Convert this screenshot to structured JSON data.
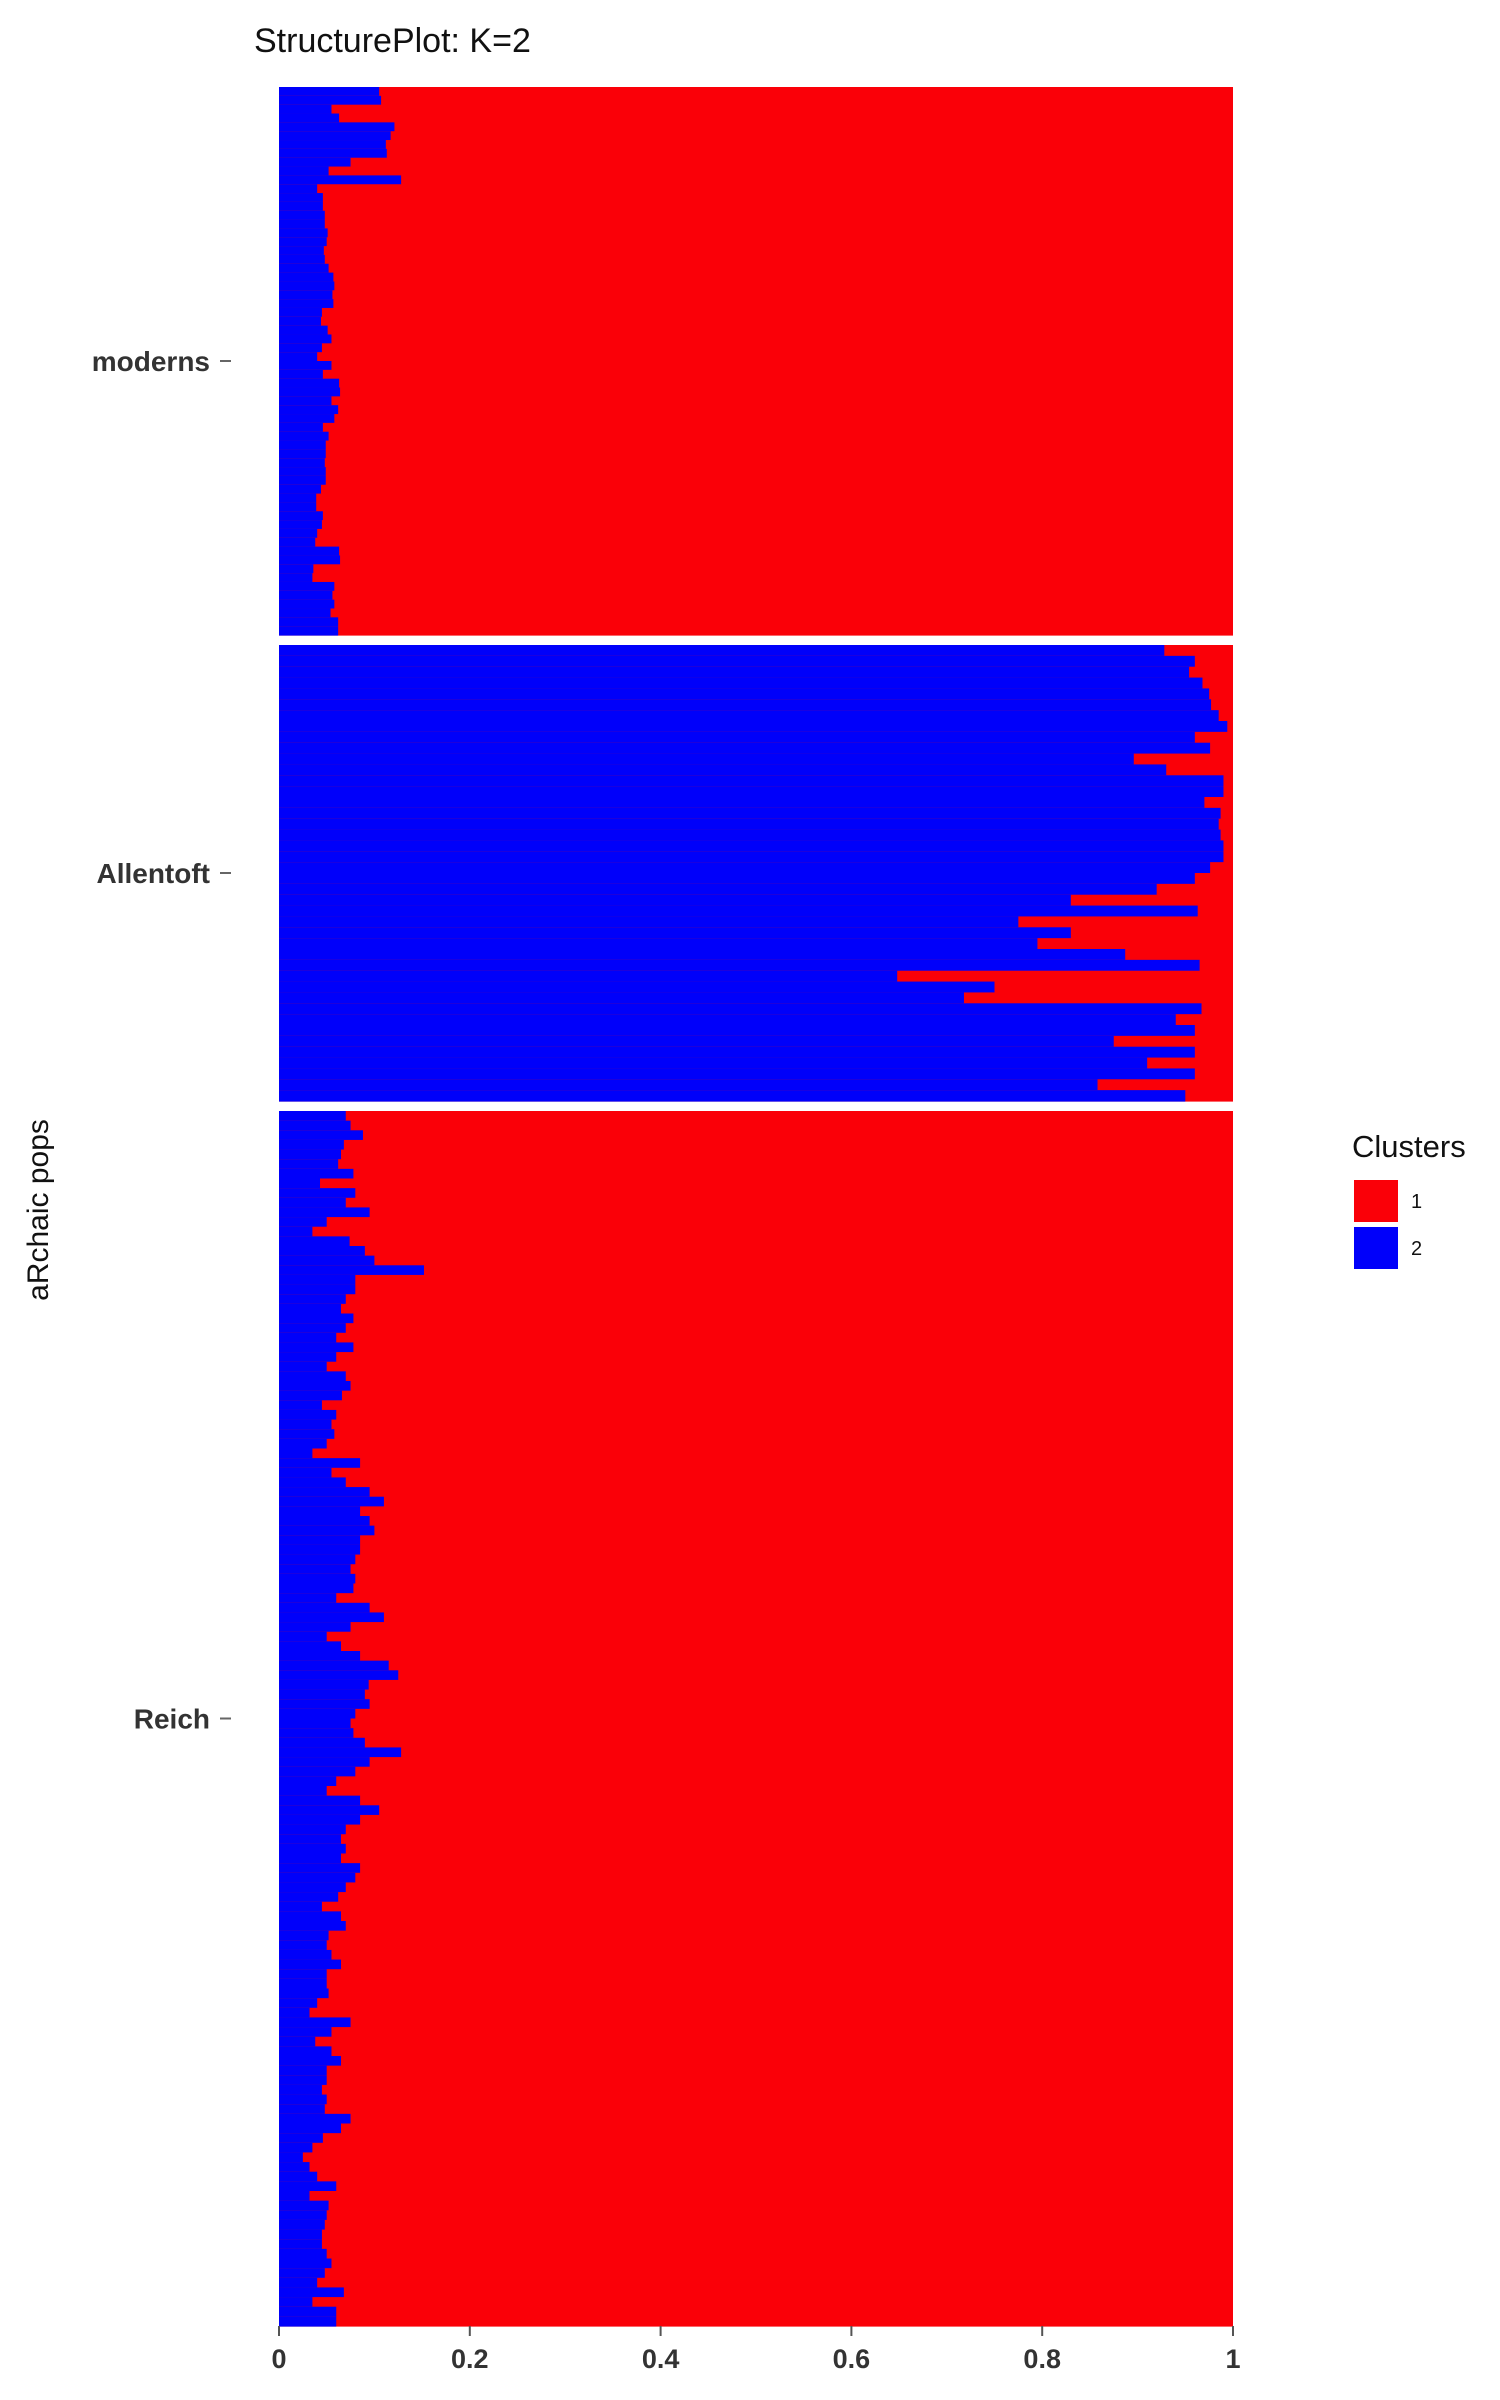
{
  "chart_data": {
    "type": "bar",
    "orientation": "horizontal",
    "stacked": true,
    "title": "StructurePlot: K=2",
    "ylabel": "aRchaic pops",
    "xlim": [
      0,
      1
    ],
    "x_ticks": [
      "0",
      "0.2",
      "0.4",
      "0.6",
      "0.8",
      "1"
    ],
    "legend": {
      "title": "Clusters",
      "position": "right",
      "entries": [
        {
          "label": "1",
          "color": "#fa0008"
        },
        {
          "label": "2",
          "color": "#0000fa"
        }
      ]
    },
    "colors": {
      "cluster_1": "#fa0008",
      "cluster_2": "#0000fa"
    },
    "series_order": [
      "cluster_2",
      "cluster_1"
    ],
    "groups": [
      {
        "name": "moderns",
        "cluster_2": [
          0.105,
          0.107,
          0.055,
          0.063,
          0.121,
          0.117,
          0.112,
          0.113,
          0.075,
          0.052,
          0.128,
          0.04,
          0.046,
          0.046,
          0.048,
          0.048,
          0.051,
          0.05,
          0.047,
          0.048,
          0.052,
          0.057,
          0.058,
          0.056,
          0.057,
          0.045,
          0.044,
          0.051,
          0.055,
          0.045,
          0.04,
          0.055,
          0.046,
          0.063,
          0.064,
          0.055,
          0.062,
          0.058,
          0.046,
          0.052,
          0.049,
          0.049,
          0.048,
          0.049,
          0.049,
          0.044,
          0.039,
          0.039,
          0.046,
          0.045,
          0.04,
          0.038,
          0.063,
          0.064,
          0.036,
          0.035,
          0.058,
          0.056,
          0.058,
          0.054,
          0.062,
          0.062
        ]
      },
      {
        "name": "Allentoft",
        "cluster_2": [
          0.928,
          0.96,
          0.954,
          0.968,
          0.975,
          0.977,
          0.985,
          0.994,
          0.96,
          0.976,
          0.896,
          0.93,
          0.99,
          0.99,
          0.97,
          0.987,
          0.985,
          0.987,
          0.99,
          0.99,
          0.976,
          0.96,
          0.92,
          0.83,
          0.963,
          0.775,
          0.83,
          0.795,
          0.887,
          0.965,
          0.648,
          0.75,
          0.718,
          0.967,
          0.94,
          0.96,
          0.875,
          0.96,
          0.91,
          0.96,
          0.858,
          0.95
        ]
      },
      {
        "name": "Reich",
        "cluster_2": [
          0.07,
          0.075,
          0.088,
          0.068,
          0.065,
          0.062,
          0.078,
          0.043,
          0.08,
          0.07,
          0.095,
          0.05,
          0.035,
          0.074,
          0.09,
          0.1,
          0.152,
          0.08,
          0.08,
          0.07,
          0.065,
          0.078,
          0.07,
          0.06,
          0.078,
          0.06,
          0.05,
          0.07,
          0.075,
          0.066,
          0.045,
          0.06,
          0.055,
          0.058,
          0.05,
          0.035,
          0.085,
          0.055,
          0.07,
          0.095,
          0.11,
          0.085,
          0.095,
          0.1,
          0.085,
          0.085,
          0.08,
          0.075,
          0.08,
          0.078,
          0.06,
          0.095,
          0.11,
          0.075,
          0.05,
          0.065,
          0.085,
          0.115,
          0.125,
          0.094,
          0.09,
          0.095,
          0.08,
          0.075,
          0.078,
          0.09,
          0.128,
          0.095,
          0.08,
          0.06,
          0.05,
          0.085,
          0.105,
          0.085,
          0.07,
          0.065,
          0.07,
          0.065,
          0.085,
          0.08,
          0.07,
          0.062,
          0.045,
          0.065,
          0.07,
          0.052,
          0.05,
          0.055,
          0.065,
          0.05,
          0.05,
          0.052,
          0.04,
          0.032,
          0.075,
          0.055,
          0.038,
          0.055,
          0.065,
          0.05,
          0.05,
          0.045,
          0.05,
          0.048,
          0.075,
          0.065,
          0.046,
          0.035,
          0.025,
          0.032,
          0.04,
          0.06,
          0.032,
          0.052,
          0.05,
          0.048,
          0.045,
          0.045,
          0.05,
          0.055,
          0.048,
          0.04,
          0.068,
          0.035,
          0.06,
          0.06
        ]
      }
    ]
  }
}
